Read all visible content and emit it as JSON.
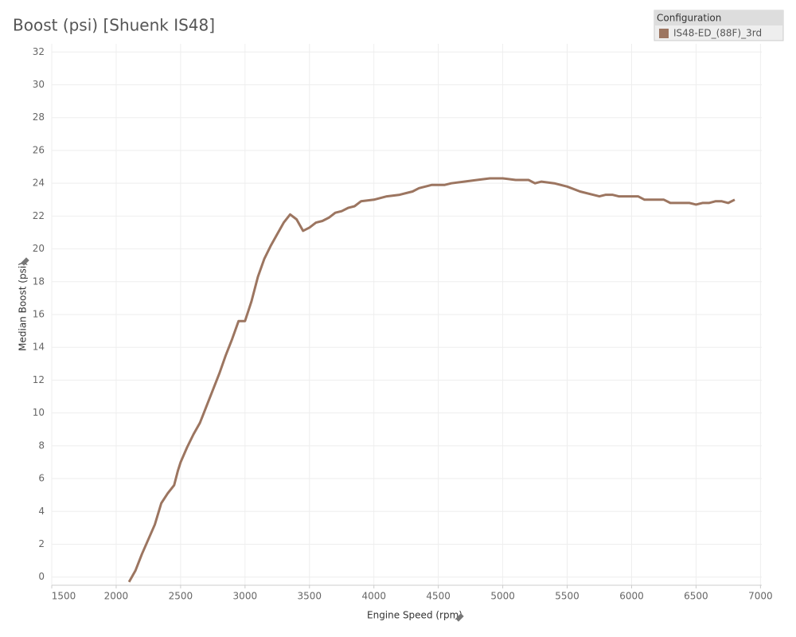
{
  "chart_data": {
    "type": "line",
    "title": "Boost (psi) [Shuenk IS48]",
    "x_label": "Engine Speed (rpm)",
    "y_label": "Median Boost (psi)",
    "legend_title": "Configuration",
    "legend": "top-right",
    "grid": true,
    "x": [
      2100,
      2150,
      2200,
      2250,
      2300,
      2350,
      2400,
      2450,
      2480,
      2500,
      2550,
      2600,
      2650,
      2700,
      2750,
      2800,
      2850,
      2900,
      2950,
      3000,
      3050,
      3100,
      3150,
      3200,
      3250,
      3300,
      3350,
      3400,
      3450,
      3500,
      3550,
      3600,
      3650,
      3700,
      3750,
      3800,
      3850,
      3900,
      4000,
      4100,
      4200,
      4300,
      4350,
      4450,
      4550,
      4600,
      4700,
      4800,
      4900,
      5000,
      5100,
      5200,
      5250,
      5300,
      5400,
      5500,
      5600,
      5700,
      5750,
      5800,
      5850,
      5900,
      6000,
      6050,
      6100,
      6200,
      6250,
      6300,
      6400,
      6450,
      6500,
      6550,
      6600,
      6650,
      6700,
      6750,
      6800
    ],
    "series": [
      {
        "name": "IS48-ED_(88F)_3rd",
        "color": "#9c7560",
        "values": [
          -0.3,
          0.4,
          1.4,
          2.3,
          3.2,
          4.5,
          5.1,
          5.6,
          6.5,
          7.0,
          7.9,
          8.7,
          9.4,
          10.4,
          11.4,
          12.4,
          13.5,
          14.5,
          15.6,
          15.6,
          16.8,
          18.3,
          19.4,
          20.2,
          20.9,
          21.6,
          22.1,
          21.8,
          21.1,
          21.3,
          21.6,
          21.7,
          21.9,
          22.2,
          22.3,
          22.5,
          22.6,
          22.9,
          23.0,
          23.2,
          23.3,
          23.5,
          23.7,
          23.9,
          23.9,
          24.0,
          24.1,
          24.2,
          24.3,
          24.3,
          24.2,
          24.2,
          24.0,
          24.1,
          24.0,
          23.8,
          23.5,
          23.3,
          23.2,
          23.3,
          23.3,
          23.2,
          23.2,
          23.2,
          23.0,
          23.0,
          23.0,
          22.8,
          22.8,
          22.8,
          22.7,
          22.8,
          22.8,
          22.9,
          22.9,
          22.8,
          23.0
        ]
      }
    ],
    "xlim": [
      1500,
      7010
    ],
    "xticks": [
      1500,
      2000,
      2500,
      3000,
      3500,
      4000,
      4500,
      5000,
      5500,
      6000,
      6500,
      7000
    ],
    "ylim": [
      -0.5,
      32.5
    ],
    "yticks": [
      0,
      2,
      4,
      6,
      8,
      10,
      12,
      14,
      16,
      18,
      20,
      22,
      24,
      26,
      28,
      30,
      32
    ]
  }
}
